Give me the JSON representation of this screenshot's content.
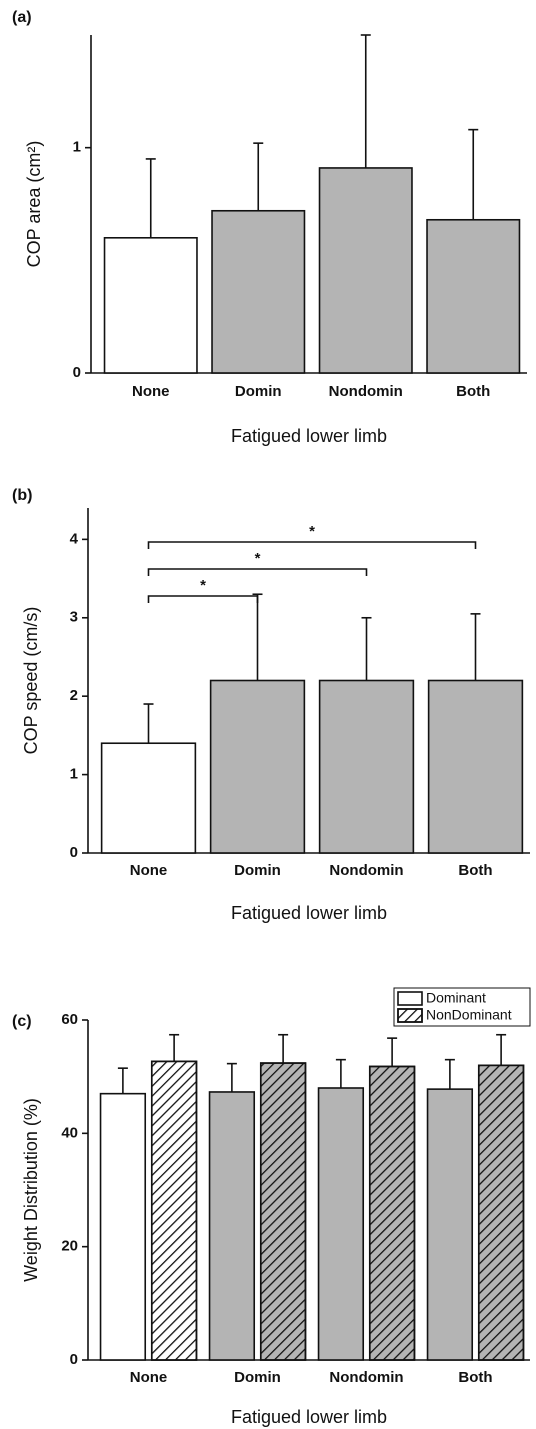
{
  "chart_data": [
    {
      "type": "bar",
      "label": "(a)",
      "ylabel": "COP area (cm²)",
      "xlabel": "Fatigued lower limb",
      "categories": [
        "None",
        "Domin",
        "Nondomin",
        "Both"
      ],
      "values": [
        0.6,
        0.72,
        0.91,
        0.68
      ],
      "errors": [
        0.35,
        0.3,
        0.59,
        0.4
      ],
      "colors": [
        "#ffffff",
        "#b4b4b4",
        "#b4b4b4",
        "#b4b4b4"
      ],
      "ylim": [
        0,
        1.5
      ],
      "yticks": [
        0,
        1
      ]
    },
    {
      "type": "bar",
      "label": "(b)",
      "ylabel": "COP speed (cm/s)",
      "xlabel": "Fatigued lower limb",
      "categories": [
        "None",
        "Domin",
        "Nondomin",
        "Both"
      ],
      "values": [
        1.4,
        2.2,
        2.2,
        2.2
      ],
      "errors": [
        0.5,
        1.1,
        0.8,
        0.85
      ],
      "colors": [
        "#ffffff",
        "#b4b4b4",
        "#b4b4b4",
        "#b4b4b4"
      ],
      "ylim": [
        0,
        4.4
      ],
      "yticks": [
        0,
        1,
        2,
        3,
        4
      ],
      "annotations": [
        "*",
        "*",
        "*"
      ]
    },
    {
      "type": "grouped_bar",
      "label": "(c)",
      "ylabel": "Weight Distribution (%)",
      "xlabel": "Fatigued lower limb",
      "categories": [
        "None",
        "Domin",
        "Nondomin",
        "Both"
      ],
      "series": [
        {
          "name": "Dominant",
          "color": "#ffffff",
          "hatch": false,
          "values": [
            47,
            47.3,
            48,
            47.8
          ],
          "errors": [
            4.5,
            5,
            5,
            5.2
          ],
          "colors": [
            "#ffffff",
            "#b4b4b4",
            "#b4b4b4",
            "#b4b4b4"
          ]
        },
        {
          "name": "NonDominant",
          "color": "#ffffff",
          "hatch": true,
          "values": [
            52.7,
            52.4,
            51.8,
            52
          ],
          "errors": [
            4.7,
            5,
            5,
            5.4
          ],
          "colors": [
            "#ffffff",
            "#b4b4b4",
            "#b4b4b4",
            "#b4b4b4"
          ]
        }
      ],
      "ylim": [
        0,
        60
      ],
      "yticks": [
        0,
        20,
        40,
        60
      ],
      "legend": "top-right"
    }
  ]
}
